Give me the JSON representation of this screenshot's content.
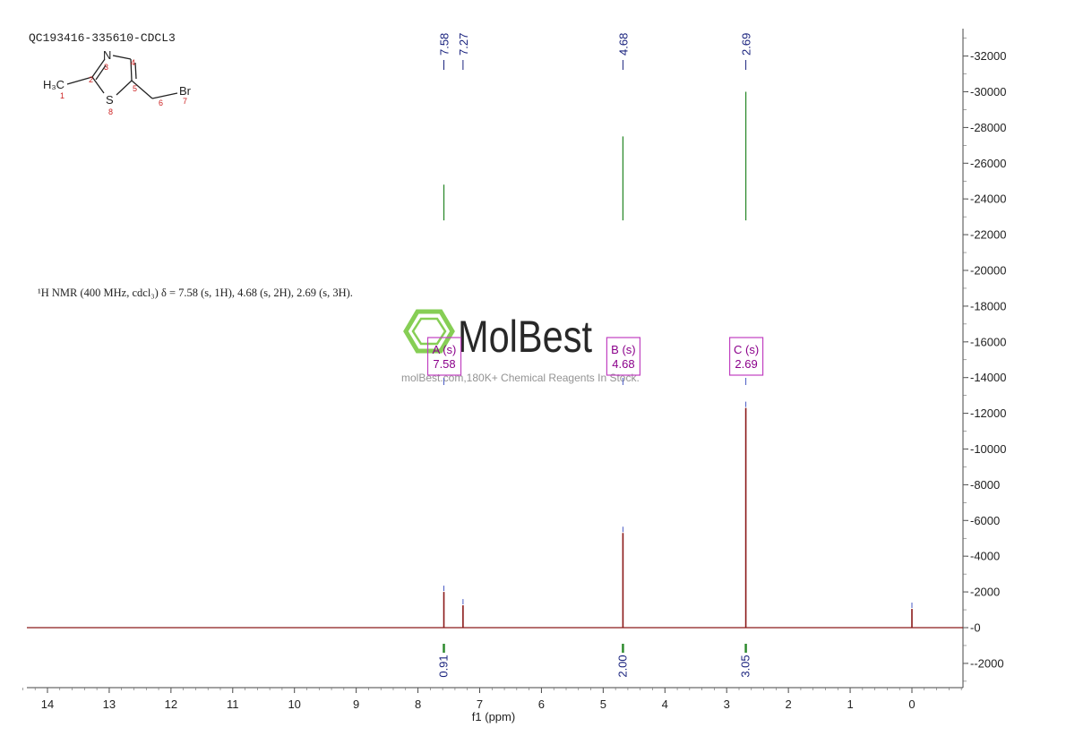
{
  "sample_id": "QC193416-335610-CDCL3",
  "nmr_summary": "¹H NMR (400 MHz, cdcl₃) δ = 7.58 (s, 1H), 4.68 (s, 2H), 2.69 (s, 3H).",
  "watermark": {
    "brand": "MolBest",
    "tagline": "molBest.com,180K+ Chemical Reagents In Stock."
  },
  "structure": {
    "labels": {
      "methyl": "H₃C",
      "nitrogen": "N",
      "sulfur": "S",
      "bromine": "Br"
    },
    "atom_numbers": [
      "1",
      "2",
      "3",
      "4",
      "5",
      "6",
      "7",
      "8"
    ]
  },
  "colors": {
    "spectrum": "#8b1a1a",
    "integral": "#2e8b2e",
    "peak_label": "#1a237e",
    "multiplet_box": "#c040c0",
    "multiplet_text": "#8b008b",
    "atom_number": "#cc2222",
    "watermark": "#7ac943"
  },
  "chart_data": {
    "type": "line",
    "xlabel": "f1 (ppm)",
    "ylabel": "",
    "xlim": [
      14.4,
      -0.8
    ],
    "ylim": [
      -3300,
      33500
    ],
    "x_ticks": [
      14,
      13,
      12,
      11,
      10,
      9,
      8,
      7,
      6,
      5,
      4,
      3,
      2,
      1,
      0
    ],
    "y_ticks": [
      -2000,
      0,
      2000,
      4000,
      6000,
      8000,
      10000,
      12000,
      14000,
      16000,
      18000,
      20000,
      22000,
      24000,
      26000,
      28000,
      30000,
      32000
    ],
    "peaks": [
      {
        "ppm": 7.58,
        "height": 2000
      },
      {
        "ppm": 7.27,
        "height": 1250
      },
      {
        "ppm": 4.68,
        "height": 5300
      },
      {
        "ppm": 2.69,
        "height": 12300
      },
      {
        "ppm": 0.0,
        "height": 1050
      }
    ],
    "peak_labels": [
      "7.58",
      "7.27",
      "4.68",
      "2.69"
    ],
    "integrals": [
      {
        "ppm": 7.58,
        "value": "0.91",
        "top": 24800
      },
      {
        "ppm": 4.68,
        "value": "2.00",
        "top": 27500
      },
      {
        "ppm": 2.69,
        "value": "3.05",
        "top": 30000
      }
    ],
    "multiplets": [
      {
        "ppm": 7.58,
        "name": "A (s)",
        "shift": "7.58"
      },
      {
        "ppm": 4.68,
        "name": "B (s)",
        "shift": "4.68"
      },
      {
        "ppm": 2.69,
        "name": "C (s)",
        "shift": "2.69"
      }
    ]
  }
}
